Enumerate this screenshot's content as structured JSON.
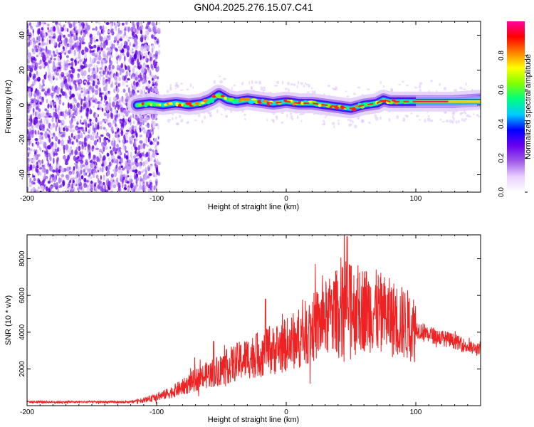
{
  "title": "GN04.2025.276.15.07.C41",
  "chart_data": [
    {
      "type": "heatmap",
      "panel": "spectrogram",
      "xlabel": "Height of straight line (km)",
      "ylabel": "Frequency (Hz)",
      "xlim": [
        -200,
        150
      ],
      "ylim": [
        -50,
        48
      ],
      "xticks": [
        -200,
        -100,
        0,
        100
      ],
      "xtick_labels": [
        "-200",
        "-100",
        "0",
        "100"
      ],
      "yticks": [
        -40,
        -20,
        0,
        20,
        40
      ],
      "ytick_labels": [
        "-40",
        "-20",
        "0",
        "20",
        "40"
      ],
      "noise_region_x": [
        -200,
        -100
      ],
      "signal_start_x": -115,
      "ridge": {
        "x": [
          -115,
          -105,
          -95,
          -85,
          -75,
          -65,
          -58,
          -52,
          -45,
          -38,
          -30,
          -20,
          -10,
          0,
          10,
          20,
          30,
          40,
          50,
          60,
          70,
          75,
          80,
          90,
          100,
          110,
          120,
          130,
          150
        ],
        "y": [
          0,
          1,
          0,
          1,
          0,
          1,
          3,
          6,
          3,
          2,
          3,
          2,
          1,
          2,
          1,
          1,
          0,
          -1,
          -2,
          0,
          1,
          3,
          2,
          2,
          2,
          2,
          2,
          2,
          3
        ]
      },
      "colorbar": {
        "label": "Normalized spectral amplitude",
        "range": [
          0,
          1
        ],
        "ticks": [
          0.0,
          0.2,
          0.4,
          0.6,
          0.8
        ],
        "tick_labels": [
          "0.0",
          "0.2",
          "0.4",
          "0.6",
          "0.8"
        ],
        "colors": [
          "#ffffff",
          "#e8d0ff",
          "#a05ae8",
          "#6a00f0",
          "#0000ff",
          "#00ccff",
          "#00ff80",
          "#80ff00",
          "#ffff00",
          "#ff8000",
          "#ff0000",
          "#ff00a0"
        ]
      }
    },
    {
      "type": "line",
      "panel": "snr",
      "xlabel": "Height of straight line (km)",
      "ylabel": "SNR (10 * v/v)",
      "xlim": [
        -200,
        150
      ],
      "ylim": [
        0,
        9300
      ],
      "xticks": [
        -200,
        -100,
        0,
        100
      ],
      "xtick_labels": [
        "-200",
        "-100",
        "0",
        "100"
      ],
      "yticks": [
        2000,
        4000,
        6000,
        8000
      ],
      "ytick_labels": [
        "2000",
        "4000",
        "6000",
        "8000"
      ],
      "series": [
        {
          "name": "SNR",
          "color": "#ee2222",
          "envelope_x": [
            -200,
            -120,
            -110,
            -100,
            -90,
            -80,
            -70,
            -60,
            -50,
            -40,
            -30,
            -20,
            -10,
            0,
            10,
            20,
            30,
            40,
            50,
            60,
            70,
            80,
            90,
            100,
            110,
            120,
            130,
            140,
            150
          ],
          "envelope_y": [
            200,
            200,
            300,
            450,
            700,
            1000,
            1400,
            1700,
            2000,
            2300,
            2600,
            2800,
            3000,
            3300,
            3700,
            4200,
            4700,
            5200,
            5400,
            5300,
            5100,
            4800,
            4500,
            4200,
            3900,
            3700,
            3500,
            3200,
            3000
          ],
          "peaks": [
            {
              "x": -56,
              "y": 3500
            },
            {
              "x": -23,
              "y": 3900
            },
            {
              "x": -16,
              "y": 5800
            },
            {
              "x": 35,
              "y": 6300
            },
            {
              "x": 47,
              "y": 9200
            },
            {
              "x": 50,
              "y": 7600
            },
            {
              "x": 55,
              "y": 6900
            }
          ]
        }
      ]
    }
  ]
}
